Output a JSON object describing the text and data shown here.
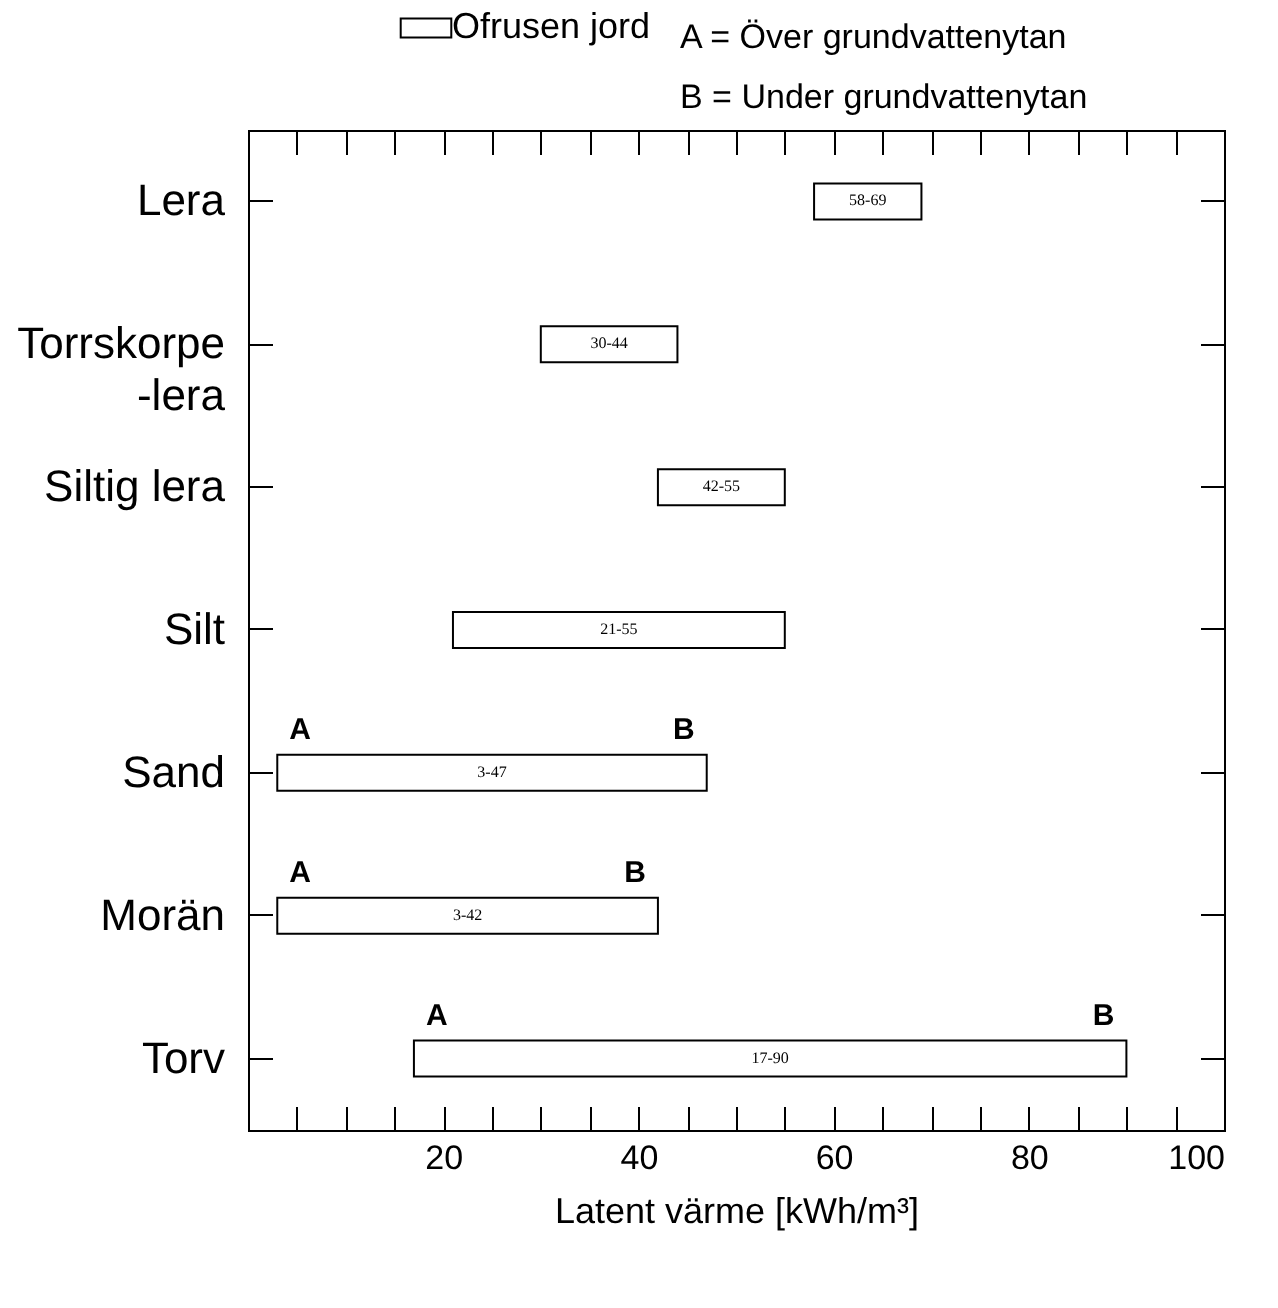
{
  "chart_data": {
    "type": "bar",
    "orientation": "horizontal",
    "xlabel": "Latent värme [kWh/m³]",
    "categories": [
      "Lera",
      "Torrskorpe-lera",
      "Siltig lera",
      "Silt",
      "Sand",
      "Morän",
      "Torv"
    ],
    "series": [
      {
        "name": "Ofrusen jord",
        "color": "#ffffff",
        "values": [
          11,
          14,
          13,
          34,
          44,
          39,
          73
        ],
        "base": [
          58,
          30,
          42,
          21,
          3,
          3,
          17
        ],
        "value_labels": [
          "58-69",
          "30-44",
          "42-55",
          "21-55",
          "3-47",
          "3-42",
          "17-90"
        ]
      }
    ],
    "xlim": [
      0,
      100
    ],
    "xticks": [
      {
        "value": 5,
        "label": null
      },
      {
        "value": 10,
        "label": null
      },
      {
        "value": 15,
        "label": null
      },
      20,
      {
        "value": 25,
        "label": null
      },
      {
        "value": 30,
        "label": null
      },
      {
        "value": 35,
        "label": null
      },
      40,
      {
        "value": 45,
        "label": null
      },
      {
        "value": 50,
        "label": null
      },
      {
        "value": 55,
        "label": null
      },
      60,
      {
        "value": 65,
        "label": null
      },
      {
        "value": 70,
        "label": null
      },
      {
        "value": 75,
        "label": null
      },
      80,
      {
        "value": 85,
        "label": null
      },
      {
        "value": 90,
        "label": null
      },
      {
        "value": 95,
        "label": null
      },
      100
    ],
    "grid": false,
    "legend": "top",
    "annotations": [
      "A = Över grundvattenytan",
      "B = Under grundvattenytan",
      {
        "text": "A",
        "x": 3,
        "y": "Sand"
      },
      {
        "text": "B",
        "x": 47,
        "y": "Sand"
      },
      {
        "text": "A",
        "x": 3,
        "y": "Morän"
      },
      {
        "text": "B",
        "x": 42,
        "y": "Morän"
      },
      {
        "text": "A",
        "x": 17,
        "y": "Torv"
      },
      {
        "text": "B",
        "x": 90,
        "y": "Torv"
      }
    ]
  }
}
